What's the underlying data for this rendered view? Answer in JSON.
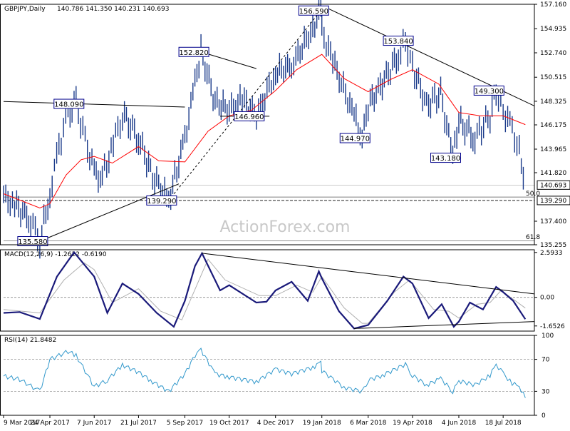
{
  "watermark": "ActionForex.com",
  "chart_data": [
    {
      "type": "candlestick",
      "title": "GBPJPY,Daily",
      "ohlc": "140.786 141.350 140.231 140.693",
      "y_range": [
        135.255,
        157.16
      ],
      "y_ticks": [
        "157.160",
        "154.935",
        "152.740",
        "150.515",
        "148.325",
        "146.175",
        "143.965",
        "141.820",
        "137.400",
        "135.255"
      ],
      "x_labels": [
        "9 Mar 2017",
        "24 Apr 2017",
        "7 Jun 2017",
        "21 Jul 2017",
        "5 Sep 2017",
        "19 Oct 2017",
        "4 Dec 2017",
        "19 Jan 2018",
        "6 Mar 2018",
        "19 Apr 2018",
        "4 Jun 2018",
        "18 Jul 2018"
      ],
      "last_price": "140.693",
      "level_line": "139.290",
      "fib_labels": [
        "50.0",
        "61.8"
      ],
      "series": [
        {
          "name": "SMA (red)",
          "color": "#ff0000"
        },
        {
          "name": "price",
          "color": "#1a3a8a"
        }
      ],
      "price_points": [
        {
          "x": "9 Mar 2017",
          "y": 139.6
        },
        {
          "x": "2017-03-20",
          "y": 138.9
        },
        {
          "x": "2017-04-05",
          "y": 137.5
        },
        {
          "x": "2017-04-14",
          "y": 135.58
        },
        {
          "x": "24 Apr 2017",
          "y": 139.9
        },
        {
          "x": "2017-05-03",
          "y": 144.3
        },
        {
          "x": "2017-05-12",
          "y": 147.2
        },
        {
          "x": "2017-05-20",
          "y": 148.09
        },
        {
          "x": "7 Jun 2017",
          "y": 141.8
        },
        {
          "x": "2017-06-15",
          "y": 141.4
        },
        {
          "x": "2017-06-26",
          "y": 144.5
        },
        {
          "x": "2017-07-05",
          "y": 147.2
        },
        {
          "x": "21 Jul 2017",
          "y": 145.0
        },
        {
          "x": "2017-08-04",
          "y": 141.5
        },
        {
          "x": "2017-08-20",
          "y": 139.29
        },
        {
          "x": "5 Sep 2017",
          "y": 144.9
        },
        {
          "x": "2017-09-15",
          "y": 150.0
        },
        {
          "x": "2017-09-21",
          "y": 152.82
        },
        {
          "x": "2017-10-05",
          "y": 148.3
        },
        {
          "x": "19 Oct 2017",
          "y": 147.5
        },
        {
          "x": "2017-11-01",
          "y": 148.5
        },
        {
          "x": "2017-11-15",
          "y": 146.96
        },
        {
          "x": "4 Dec 2017",
          "y": 151.0
        },
        {
          "x": "2017-12-20",
          "y": 151.5
        },
        {
          "x": "2018-01-10",
          "y": 155.0
        },
        {
          "x": "2018-01-18",
          "y": 156.59
        },
        {
          "x": "19 Jan 2018",
          "y": 154.7
        },
        {
          "x": "2018-02-01",
          "y": 151.5
        },
        {
          "x": "2018-02-20",
          "y": 147.0
        },
        {
          "x": "2018-02-28",
          "y": 144.97
        },
        {
          "x": "6 Mar 2018",
          "y": 147.9
        },
        {
          "x": "2018-03-20",
          "y": 150.0
        },
        {
          "x": "2018-04-05",
          "y": 152.5
        },
        {
          "x": "2018-04-12",
          "y": 153.84
        },
        {
          "x": "19 Apr 2018",
          "y": 151.5
        },
        {
          "x": "2018-05-03",
          "y": 148.0
        },
        {
          "x": "2018-05-17",
          "y": 149.0
        },
        {
          "x": "2018-05-29",
          "y": 143.18
        },
        {
          "x": "4 Jun 2018",
          "y": 146.5
        },
        {
          "x": "2018-06-20",
          "y": 145.0
        },
        {
          "x": "2018-07-05",
          "y": 147.0
        },
        {
          "x": "2018-07-11",
          "y": 149.3
        },
        {
          "x": "18 Jul 2018",
          "y": 147.5
        },
        {
          "x": "2018-07-27",
          "y": 145.8
        },
        {
          "x": "2018-08-03",
          "y": 143.8
        },
        {
          "x": "2018-08-09",
          "y": 140.693
        }
      ],
      "ma_points": [
        {
          "x": "9 Mar 2017",
          "y": 139.9
        },
        {
          "x": "2017-04-14",
          "y": 138.6
        },
        {
          "x": "24 Apr 2017",
          "y": 139.0
        },
        {
          "x": "2017-05-10",
          "y": 141.6
        },
        {
          "x": "2017-05-25",
          "y": 143.0
        },
        {
          "x": "7 Jun 2017",
          "y": 143.3
        },
        {
          "x": "2017-06-25",
          "y": 142.7
        },
        {
          "x": "21 Jul 2017",
          "y": 144.2
        },
        {
          "x": "2017-08-10",
          "y": 142.9
        },
        {
          "x": "5 Sep 2017",
          "y": 142.8
        },
        {
          "x": "2017-09-28",
          "y": 145.6
        },
        {
          "x": "19 Oct 2017",
          "y": 147.0
        },
        {
          "x": "2017-11-10",
          "y": 147.5
        },
        {
          "x": "4 Dec 2017",
          "y": 149.3
        },
        {
          "x": "2017-12-25",
          "y": 151.2
        },
        {
          "x": "19 Jan 2018",
          "y": 152.6
        },
        {
          "x": "2018-02-10",
          "y": 150.4
        },
        {
          "x": "6 Mar 2018",
          "y": 149.2
        },
        {
          "x": "2018-03-28",
          "y": 150.3
        },
        {
          "x": "19 Apr 2018",
          "y": 151.2
        },
        {
          "x": "2018-05-15",
          "y": 149.9
        },
        {
          "x": "4 Jun 2018",
          "y": 147.3
        },
        {
          "x": "2018-06-25",
          "y": 147.0
        },
        {
          "x": "18 Jul 2018",
          "y": 147.0
        },
        {
          "x": "2018-08-09",
          "y": 146.2
        }
      ],
      "annotations": [
        {
          "text": "148.090",
          "x": "2017-05-20",
          "y": 148.09
        },
        {
          "text": "135.580",
          "x": "2017-04-14",
          "y": 135.58
        },
        {
          "text": "139.290",
          "x": "2017-08-20",
          "y": 139.29
        },
        {
          "text": "152.820",
          "x": "2017-09-21",
          "y": 152.82
        },
        {
          "text": "146.960",
          "x": "2017-11-15",
          "y": 146.96
        },
        {
          "text": "156.590",
          "x": "2018-01-18",
          "y": 156.59
        },
        {
          "text": "144.970",
          "x": "2018-02-28",
          "y": 144.97
        },
        {
          "text": "153.840",
          "x": "2018-04-12",
          "y": 153.84
        },
        {
          "text": "143.180",
          "x": "2018-05-29",
          "y": 143.18
        },
        {
          "text": "149.300",
          "x": "2018-07-11",
          "y": 149.3
        }
      ],
      "trendlines": [
        {
          "from": {
            "x": "9 Mar 2017",
            "y": 148.3
          },
          "to": {
            "x": "5 Sep 2017",
            "y": 147.8
          }
        },
        {
          "from": {
            "x": "2017-04-14",
            "y": 135.58
          },
          "to": {
            "x": "2017-08-30",
            "y": 140.8
          }
        },
        {
          "from": {
            "x": "2017-08-20",
            "y": 139.29
          },
          "to": {
            "x": "2018-01-18",
            "y": 156.59
          },
          "dashed": true
        },
        {
          "from": {
            "x": "2017-09-21",
            "y": 152.82
          },
          "to": {
            "x": "2017-11-15",
            "y": 151.3
          }
        },
        {
          "from": {
            "x": "2017-10-10",
            "y": 146.96
          },
          "to": {
            "x": "2017-11-28",
            "y": 146.96
          }
        },
        {
          "from": {
            "x": "2018-01-20",
            "y": 157.0
          },
          "to": {
            "x": "2018-08-18",
            "y": 147.9
          }
        }
      ]
    },
    {
      "type": "line",
      "title": "MACD(12,26,9) -1.2622 -0.6190",
      "y_ticks": [
        "2.5933",
        "0.00",
        "-1.6526"
      ],
      "y_range": [
        -1.95,
        2.75
      ],
      "series": [
        {
          "name": "MACD",
          "color": "#1a1a7a",
          "points": [
            {
              "x": "9 Mar 2017",
              "y": -0.9
            },
            {
              "x": "2017-03-25",
              "y": -0.85
            },
            {
              "x": "2017-04-14",
              "y": -1.25
            },
            {
              "x": "2017-05-01",
              "y": 1.2
            },
            {
              "x": "2017-05-18",
              "y": 2.6
            },
            {
              "x": "7 Jun 2017",
              "y": 1.2
            },
            {
              "x": "2017-06-20",
              "y": -0.9
            },
            {
              "x": "2017-07-05",
              "y": 0.8
            },
            {
              "x": "21 Jul 2017",
              "y": 0.2
            },
            {
              "x": "2017-08-08",
              "y": -0.9
            },
            {
              "x": "2017-08-25",
              "y": -1.7
            },
            {
              "x": "5 Sep 2017",
              "y": -0.2
            },
            {
              "x": "2017-09-15",
              "y": 1.8
            },
            {
              "x": "2017-09-22",
              "y": 2.55
            },
            {
              "x": "2017-10-10",
              "y": 0.4
            },
            {
              "x": "19 Oct 2017",
              "y": 0.7
            },
            {
              "x": "2017-11-15",
              "y": -0.3
            },
            {
              "x": "2017-11-25",
              "y": -0.25
            },
            {
              "x": "4 Dec 2017",
              "y": 0.4
            },
            {
              "x": "2017-12-20",
              "y": 0.9
            },
            {
              "x": "2018-01-05",
              "y": -0.2
            },
            {
              "x": "2018-01-16",
              "y": 1.5
            },
            {
              "x": "19 Jan 2018",
              "y": 1.1
            },
            {
              "x": "2018-02-05",
              "y": -0.8
            },
            {
              "x": "2018-02-20",
              "y": -1.8
            },
            {
              "x": "6 Mar 2018",
              "y": -1.6
            },
            {
              "x": "2018-03-25",
              "y": -0.2
            },
            {
              "x": "2018-04-10",
              "y": 1.2
            },
            {
              "x": "19 Apr 2018",
              "y": 0.8
            },
            {
              "x": "2018-05-05",
              "y": -1.2
            },
            {
              "x": "2018-05-18",
              "y": -0.4
            },
            {
              "x": "2018-05-30",
              "y": -1.7
            },
            {
              "x": "4 Jun 2018",
              "y": -1.4
            },
            {
              "x": "2018-06-15",
              "y": -0.3
            },
            {
              "x": "2018-06-28",
              "y": -0.7
            },
            {
              "x": "2018-07-11",
              "y": 0.6
            },
            {
              "x": "18 Jul 2018",
              "y": 0.3
            },
            {
              "x": "2018-07-28",
              "y": -0.2
            },
            {
              "x": "2018-08-09",
              "y": -1.26
            }
          ]
        },
        {
          "name": "Signal",
          "color": "#b0b0b0",
          "points": [
            {
              "x": "9 Mar 2017",
              "y": -0.7
            },
            {
              "x": "2017-04-14",
              "y": -0.9
            },
            {
              "x": "2017-05-08",
              "y": 1.0
            },
            {
              "x": "2017-05-28",
              "y": 2.0
            },
            {
              "x": "7 Jun 2017",
              "y": 1.6
            },
            {
              "x": "2017-06-25",
              "y": -0.3
            },
            {
              "x": "21 Jul 2017",
              "y": 0.5
            },
            {
              "x": "2017-08-12",
              "y": -0.8
            },
            {
              "x": "2017-09-02",
              "y": -1.3
            },
            {
              "x": "2017-09-28",
              "y": 2.2
            },
            {
              "x": "2017-10-15",
              "y": 1.0
            },
            {
              "x": "2017-11-18",
              "y": 0.1
            },
            {
              "x": "4 Dec 2017",
              "y": 0.1
            },
            {
              "x": "2017-12-25",
              "y": 0.7
            },
            {
              "x": "2018-01-10",
              "y": 0.3
            },
            {
              "x": "19 Jan 2018",
              "y": 1.2
            },
            {
              "x": "2018-02-10",
              "y": -0.6
            },
            {
              "x": "2018-02-28",
              "y": -1.5
            },
            {
              "x": "6 Mar 2018",
              "y": -1.5
            },
            {
              "x": "2018-04-01",
              "y": 0.3
            },
            {
              "x": "2018-04-16",
              "y": 1.0
            },
            {
              "x": "2018-05-10",
              "y": -0.7
            },
            {
              "x": "2018-05-25",
              "y": -0.8
            },
            {
              "x": "4 Jun 2018",
              "y": -1.2
            },
            {
              "x": "2018-06-22",
              "y": -0.4
            },
            {
              "x": "2018-07-05",
              "y": -0.3
            },
            {
              "x": "2018-07-16",
              "y": 0.4
            },
            {
              "x": "2018-08-09",
              "y": -0.62
            }
          ]
        }
      ],
      "trendlines": [
        {
          "from": {
            "x": "2017-09-22",
            "y": 2.55
          },
          "to": {
            "x": "2018-08-18",
            "y": 0.2
          }
        },
        {
          "from": {
            "x": "2018-02-20",
            "y": -1.8
          },
          "to": {
            "x": "2018-08-18",
            "y": -1.4
          }
        }
      ]
    },
    {
      "type": "line",
      "title": "RSI(14) 21.8482",
      "y_ticks": [
        "100",
        "70",
        "30",
        "0"
      ],
      "y_range": [
        0,
        100
      ],
      "levels": [
        70,
        30
      ],
      "series": [
        {
          "name": "RSI",
          "color": "#3399cc",
          "points": [
            {
              "x": "9 Mar 2017",
              "y": 49
            },
            {
              "x": "2017-03-25",
              "y": 45
            },
            {
              "x": "2017-04-14",
              "y": 30
            },
            {
              "x": "24 Apr 2017",
              "y": 70
            },
            {
              "x": "2017-05-12",
              "y": 80
            },
            {
              "x": "2017-05-20",
              "y": 75
            },
            {
              "x": "7 Jun 2017",
              "y": 36
            },
            {
              "x": "2017-06-20",
              "y": 44
            },
            {
              "x": "2017-07-05",
              "y": 63
            },
            {
              "x": "21 Jul 2017",
              "y": 54
            },
            {
              "x": "2017-08-04",
              "y": 42
            },
            {
              "x": "2017-08-20",
              "y": 30
            },
            {
              "x": "5 Sep 2017",
              "y": 52
            },
            {
              "x": "2017-09-15",
              "y": 75
            },
            {
              "x": "2017-09-21",
              "y": 82
            },
            {
              "x": "2017-10-05",
              "y": 52
            },
            {
              "x": "19 Oct 2017",
              "y": 48
            },
            {
              "x": "2017-11-15",
              "y": 42
            },
            {
              "x": "4 Dec 2017",
              "y": 58
            },
            {
              "x": "2017-12-20",
              "y": 52
            },
            {
              "x": "2018-01-10",
              "y": 60
            },
            {
              "x": "2018-01-18",
              "y": 66
            },
            {
              "x": "19 Jan 2018",
              "y": 56
            },
            {
              "x": "2018-02-10",
              "y": 35
            },
            {
              "x": "2018-02-28",
              "y": 30
            },
            {
              "x": "6 Mar 2018",
              "y": 44
            },
            {
              "x": "2018-03-20",
              "y": 50
            },
            {
              "x": "2018-04-12",
              "y": 64
            },
            {
              "x": "19 Apr 2018",
              "y": 50
            },
            {
              "x": "2018-05-03",
              "y": 38
            },
            {
              "x": "2018-05-17",
              "y": 46
            },
            {
              "x": "2018-05-29",
              "y": 30
            },
            {
              "x": "4 Jun 2018",
              "y": 43
            },
            {
              "x": "2018-06-20",
              "y": 38
            },
            {
              "x": "2018-07-05",
              "y": 50
            },
            {
              "x": "2018-07-11",
              "y": 64
            },
            {
              "x": "18 Jul 2018",
              "y": 52
            },
            {
              "x": "2018-07-27",
              "y": 40
            },
            {
              "x": "2018-08-03",
              "y": 36
            },
            {
              "x": "2018-08-09",
              "y": 21.8
            }
          ]
        }
      ]
    }
  ]
}
